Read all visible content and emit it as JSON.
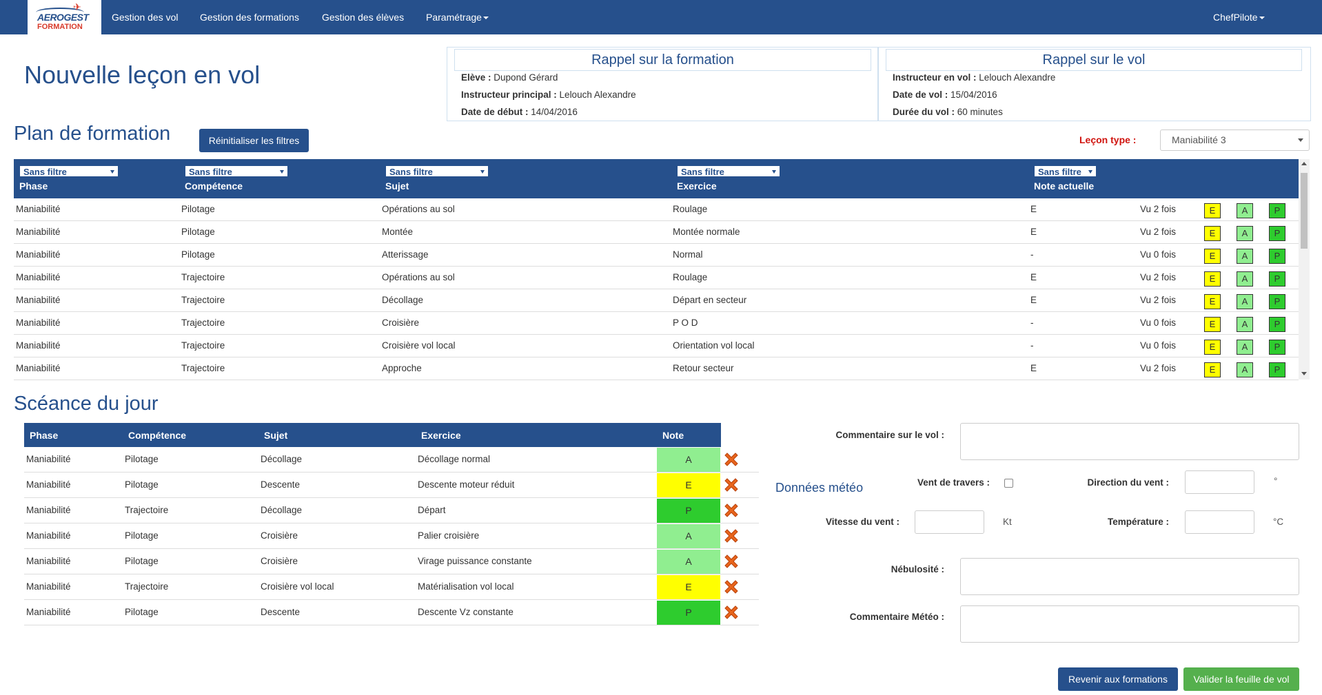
{
  "nav": {
    "logo_top": "AEROGEST",
    "logo_bottom": "FORMATION",
    "items": [
      "Gestion des vol",
      "Gestion des formations",
      "Gestion des élèves",
      "Paramétrage"
    ],
    "user": "ChefPilote"
  },
  "page_title": "Nouvelle leçon en vol",
  "recap_formation": {
    "title": "Rappel sur la formation",
    "eleve_label": "Elève :",
    "eleve": "Dupond Gérard",
    "instructeur_label": "Instructeur principal :",
    "instructeur": "Lelouch Alexandre",
    "date_label": "Date de début :",
    "date": "14/04/2016"
  },
  "recap_vol": {
    "title": "Rappel sur le vol",
    "instructeur_label": "Instructeur en vol :",
    "instructeur": "Lelouch Alexandre",
    "date_label": "Date de vol :",
    "date": "15/04/2016",
    "duree_label": "Durée du vol :",
    "duree": "60 minutes"
  },
  "plan": {
    "title": "Plan de formation",
    "reset_button": "Réinitialiser les filtres",
    "lecon_label": "Leçon type :",
    "lecon_value": "Maniabilité 3",
    "filter_label": "Sans filtre",
    "columns": [
      "Phase",
      "Compétence",
      "Sujet",
      "Exercice",
      "Note actuelle"
    ],
    "note_buttons": [
      "E",
      "A",
      "P"
    ],
    "rows": [
      {
        "phase": "Maniabilité",
        "competence": "Pilotage",
        "sujet": "Opérations au sol",
        "exercice": "Roulage",
        "note": "E",
        "vu": "Vu 2 fois"
      },
      {
        "phase": "Maniabilité",
        "competence": "Pilotage",
        "sujet": "Montée",
        "exercice": "Montée normale",
        "note": "E",
        "vu": "Vu 2 fois"
      },
      {
        "phase": "Maniabilité",
        "competence": "Pilotage",
        "sujet": "Atterissage",
        "exercice": "Normal",
        "note": "-",
        "vu": "Vu 0 fois"
      },
      {
        "phase": "Maniabilité",
        "competence": "Trajectoire",
        "sujet": "Opérations au sol",
        "exercice": "Roulage",
        "note": "E",
        "vu": "Vu 2 fois"
      },
      {
        "phase": "Maniabilité",
        "competence": "Trajectoire",
        "sujet": "Décollage",
        "exercice": "Départ en secteur",
        "note": "E",
        "vu": "Vu 2 fois"
      },
      {
        "phase": "Maniabilité",
        "competence": "Trajectoire",
        "sujet": "Croisière",
        "exercice": "P O D",
        "note": "-",
        "vu": "Vu 0 fois"
      },
      {
        "phase": "Maniabilité",
        "competence": "Trajectoire",
        "sujet": "Croisière vol local",
        "exercice": "Orientation vol local",
        "note": "-",
        "vu": "Vu 0 fois"
      },
      {
        "phase": "Maniabilité",
        "competence": "Trajectoire",
        "sujet": "Approche",
        "exercice": "Retour secteur",
        "note": "E",
        "vu": "Vu 2 fois"
      }
    ]
  },
  "seance": {
    "title": "Scéance du jour",
    "columns": [
      "Phase",
      "Compétence",
      "Sujet",
      "Exercice",
      "Note"
    ],
    "note_colors": {
      "E": "#ffff00",
      "A": "#90ee90",
      "P": "#2ecc2e"
    },
    "rows": [
      {
        "phase": "Maniabilité",
        "competence": "Pilotage",
        "sujet": "Décollage",
        "exercice": "Décollage normal",
        "note": "A"
      },
      {
        "phase": "Maniabilité",
        "competence": "Pilotage",
        "sujet": "Descente",
        "exercice": "Descente moteur réduit",
        "note": "E"
      },
      {
        "phase": "Maniabilité",
        "competence": "Trajectoire",
        "sujet": "Décollage",
        "exercice": "Départ",
        "note": "P"
      },
      {
        "phase": "Maniabilité",
        "competence": "Pilotage",
        "sujet": "Croisière",
        "exercice": "Palier croisière",
        "note": "A"
      },
      {
        "phase": "Maniabilité",
        "competence": "Pilotage",
        "sujet": "Croisière",
        "exercice": "Virage puissance constante",
        "note": "A"
      },
      {
        "phase": "Maniabilité",
        "competence": "Trajectoire",
        "sujet": "Croisière vol local",
        "exercice": "Matérialisation vol local",
        "note": "E"
      },
      {
        "phase": "Maniabilité",
        "competence": "Pilotage",
        "sujet": "Descente",
        "exercice": "Descente Vz constante",
        "note": "P"
      }
    ]
  },
  "form": {
    "commentaire_vol_label": "Commentaire sur le vol :",
    "meteo_title": "Données météo",
    "vent_travers_label": "Vent de travers :",
    "direction_label": "Direction du vent :",
    "direction_unit": "°",
    "vitesse_label": "Vitesse du vent :",
    "vitesse_unit": "Kt",
    "temperature_label": "Température :",
    "temperature_unit": "°C",
    "nebulosite_label": "Nébulosité :",
    "commentaire_meteo_label": "Commentaire Météo :"
  },
  "actions": {
    "back": "Revenir aux formations",
    "validate": "Valider la feuille de vol"
  },
  "colors": {
    "primary": "#26508c",
    "danger": "#d0140f",
    "success": "#55b04d"
  }
}
